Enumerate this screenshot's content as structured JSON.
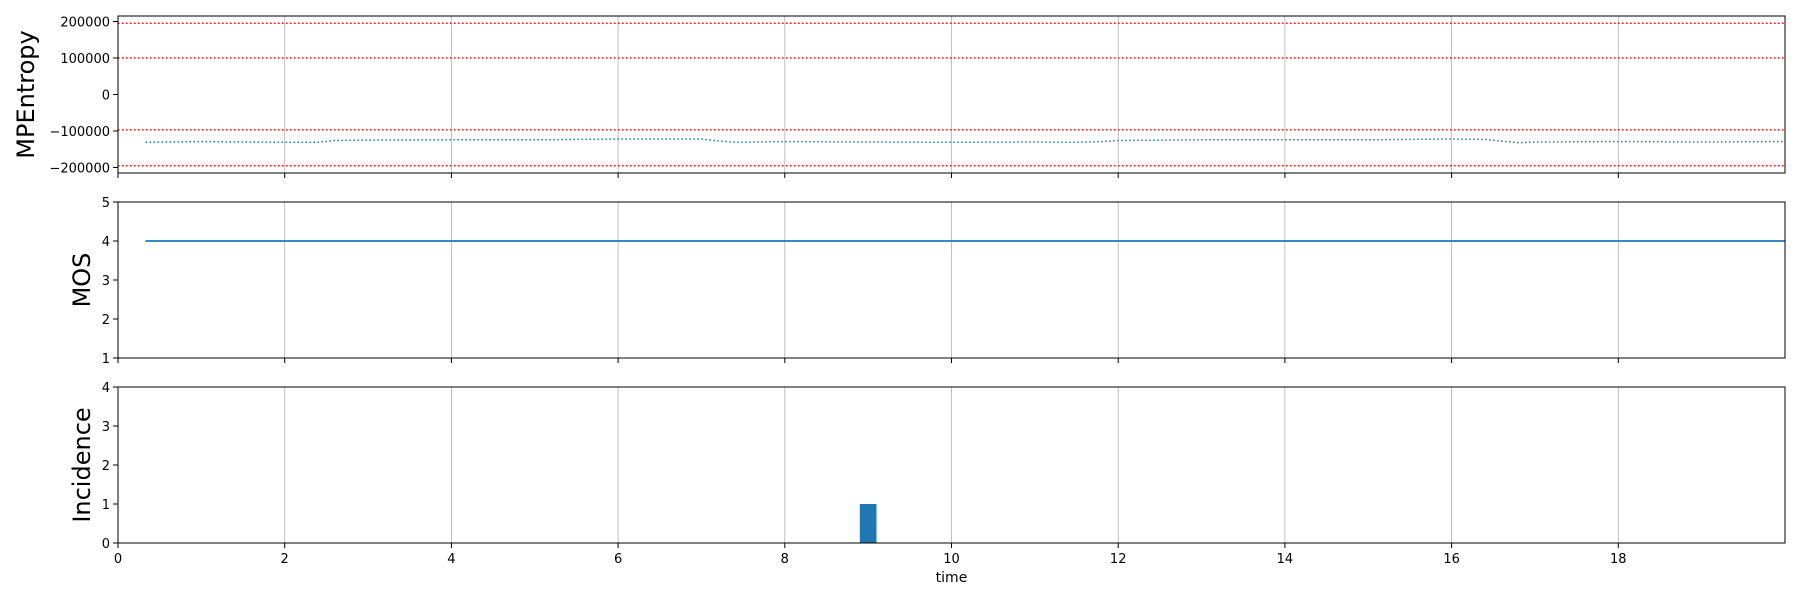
{
  "chart_data": [
    {
      "type": "line",
      "ylabel": "MPEntropy",
      "xlim": [
        0,
        20
      ],
      "ylim": [
        -215000,
        215000
      ],
      "xticks": [
        0,
        2,
        4,
        6,
        8,
        10,
        12,
        14,
        16,
        18
      ],
      "yticks": [
        -200000,
        -100000,
        0,
        100000,
        200000
      ],
      "ytick_labels": [
        "−200000",
        "−100000",
        "0",
        "100000",
        "200000"
      ],
      "grid_x": true,
      "threshold_lines": {
        "values": [
          195000,
          100000,
          -97000,
          -195000
        ],
        "color": "#ff0000",
        "style": "dotted"
      },
      "series": [
        {
          "color": "#1f77b4",
          "style": "dotted",
          "x": [
            0.33,
            1.0,
            1.5,
            2.0,
            2.4,
            2.6,
            3.0,
            4.0,
            5.0,
            6.0,
            7.0,
            7.2,
            7.4,
            8.0,
            9.0,
            10.0,
            11.0,
            11.5,
            11.8,
            12.0,
            13.0,
            14.0,
            15.0,
            16.0,
            16.4,
            16.6,
            16.8,
            17.0,
            18.0,
            19.0,
            20.0
          ],
          "y": [
            -131000,
            -129000,
            -130000,
            -131000,
            -131000,
            -126000,
            -125000,
            -124000,
            -124000,
            -122000,
            -122000,
            -127000,
            -131000,
            -129000,
            -130000,
            -131000,
            -130000,
            -131000,
            -129000,
            -126000,
            -124000,
            -124000,
            -124000,
            -122000,
            -123000,
            -128000,
            -132000,
            -130000,
            -129000,
            -130000,
            -129000
          ]
        }
      ]
    },
    {
      "type": "line",
      "ylabel": "MOS",
      "xlim": [
        0,
        20
      ],
      "ylim": [
        1,
        5
      ],
      "xticks": [
        0,
        2,
        4,
        6,
        8,
        10,
        12,
        14,
        16,
        18
      ],
      "yticks": [
        1,
        2,
        3,
        4,
        5
      ],
      "ytick_labels": [
        "1",
        "2",
        "3",
        "4",
        "5"
      ],
      "grid_x": true,
      "series": [
        {
          "color": "#1f77b4",
          "style": "solid",
          "x": [
            0.33,
            20
          ],
          "y": [
            4,
            4
          ]
        }
      ]
    },
    {
      "type": "bar",
      "ylabel": "Incidence",
      "xlabel": "time",
      "xlim": [
        0,
        20
      ],
      "ylim": [
        0,
        4
      ],
      "xticks": [
        0,
        2,
        4,
        6,
        8,
        10,
        12,
        14,
        16,
        18
      ],
      "xtick_labels": [
        "0",
        "2",
        "4",
        "6",
        "8",
        "10",
        "12",
        "14",
        "16",
        "18"
      ],
      "yticks": [
        0,
        1,
        2,
        3,
        4
      ],
      "ytick_labels": [
        "0",
        "1",
        "2",
        "3",
        "4"
      ],
      "grid_x": true,
      "color": "#1f77b4",
      "bars": [
        {
          "x": 9.0,
          "width": 0.2,
          "value": 1
        }
      ]
    }
  ]
}
